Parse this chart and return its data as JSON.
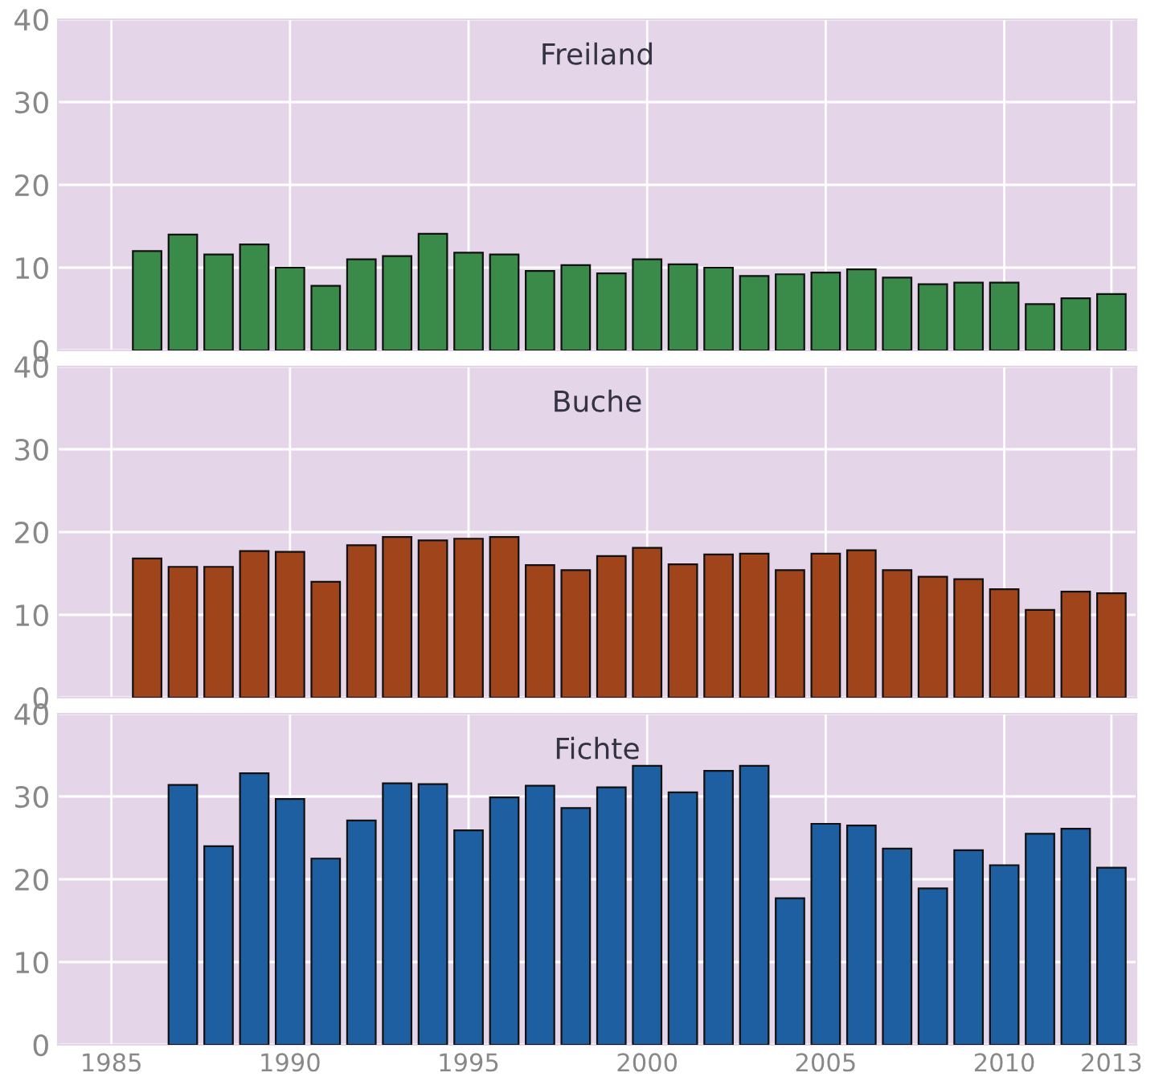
{
  "chart_data": [
    {
      "type": "bar",
      "title": "Freiland",
      "x": [
        1986,
        1987,
        1988,
        1989,
        1990,
        1991,
        1992,
        1993,
        1994,
        1995,
        1996,
        1997,
        1998,
        1999,
        2000,
        2001,
        2002,
        2003,
        2004,
        2005,
        2006,
        2007,
        2008,
        2009,
        2010,
        2011,
        2012,
        2013
      ],
      "series": [
        {
          "color": "#3a8a4a",
          "values": [
            12,
            14,
            11.6,
            12.8,
            10,
            7.8,
            11,
            11.4,
            14.1,
            11.8,
            11.6,
            9.6,
            10.3,
            9.3,
            11,
            10.4,
            10,
            9,
            9.2,
            9.4,
            9.8,
            8.8,
            8,
            8.2,
            8.2,
            5.6,
            6.3,
            6.8
          ]
        }
      ],
      "xlim": [
        1983.5,
        2013.7
      ],
      "xticks": [
        1985,
        1990,
        1995,
        2000,
        2005,
        2010,
        2013
      ],
      "ylim": [
        0,
        40
      ],
      "yticks": [
        0,
        10,
        20,
        30,
        40
      ],
      "grid": true,
      "tick_labels": "y"
    },
    {
      "type": "bar",
      "title": "Buche",
      "x": [
        1986,
        1987,
        1988,
        1989,
        1990,
        1991,
        1992,
        1993,
        1994,
        1995,
        1996,
        1997,
        1998,
        1999,
        2000,
        2001,
        2002,
        2003,
        2004,
        2005,
        2006,
        2007,
        2008,
        2009,
        2010,
        2011,
        2012,
        2013
      ],
      "series": [
        {
          "color": "#a0441c",
          "values": [
            16.8,
            15.8,
            15.8,
            17.7,
            17.6,
            14,
            18.4,
            19.4,
            19,
            19.2,
            19.4,
            16,
            15.4,
            17.1,
            18.1,
            16.1,
            17.3,
            17.4,
            15.4,
            17.4,
            17.8,
            15.4,
            14.6,
            14.3,
            13.1,
            10.6,
            12.8,
            12.6
          ]
        }
      ],
      "xlim": [
        1983.5,
        2013.7
      ],
      "xticks": [
        1985,
        1990,
        1995,
        2000,
        2005,
        2010,
        2013
      ],
      "ylim": [
        0,
        40
      ],
      "yticks": [
        0,
        10,
        20,
        30,
        40
      ],
      "grid": true,
      "tick_labels": "y"
    },
    {
      "type": "bar",
      "title": "Fichte",
      "x": [
        1987,
        1988,
        1989,
        1990,
        1991,
        1992,
        1993,
        1994,
        1995,
        1996,
        1997,
        1998,
        1999,
        2000,
        2001,
        2002,
        2003,
        2004,
        2005,
        2006,
        2007,
        2008,
        2009,
        2010,
        2011,
        2012,
        2013
      ],
      "series": [
        {
          "color": "#1d5fa0",
          "values": [
            31.4,
            24,
            32.8,
            29.7,
            22.5,
            27.1,
            31.6,
            31.5,
            25.9,
            29.9,
            31.3,
            28.6,
            31.1,
            33.7,
            30.5,
            33.1,
            33.7,
            17.7,
            26.7,
            26.5,
            23.7,
            18.9,
            23.5,
            21.7,
            25.5,
            26.1,
            21.4
          ]
        }
      ],
      "xlim": [
        1983.5,
        2013.7
      ],
      "xticks": [
        1985,
        1990,
        1995,
        2000,
        2005,
        2010,
        2013
      ],
      "ylim": [
        0,
        40
      ],
      "yticks": [
        0,
        10,
        20,
        30,
        40
      ],
      "grid": true
    }
  ]
}
